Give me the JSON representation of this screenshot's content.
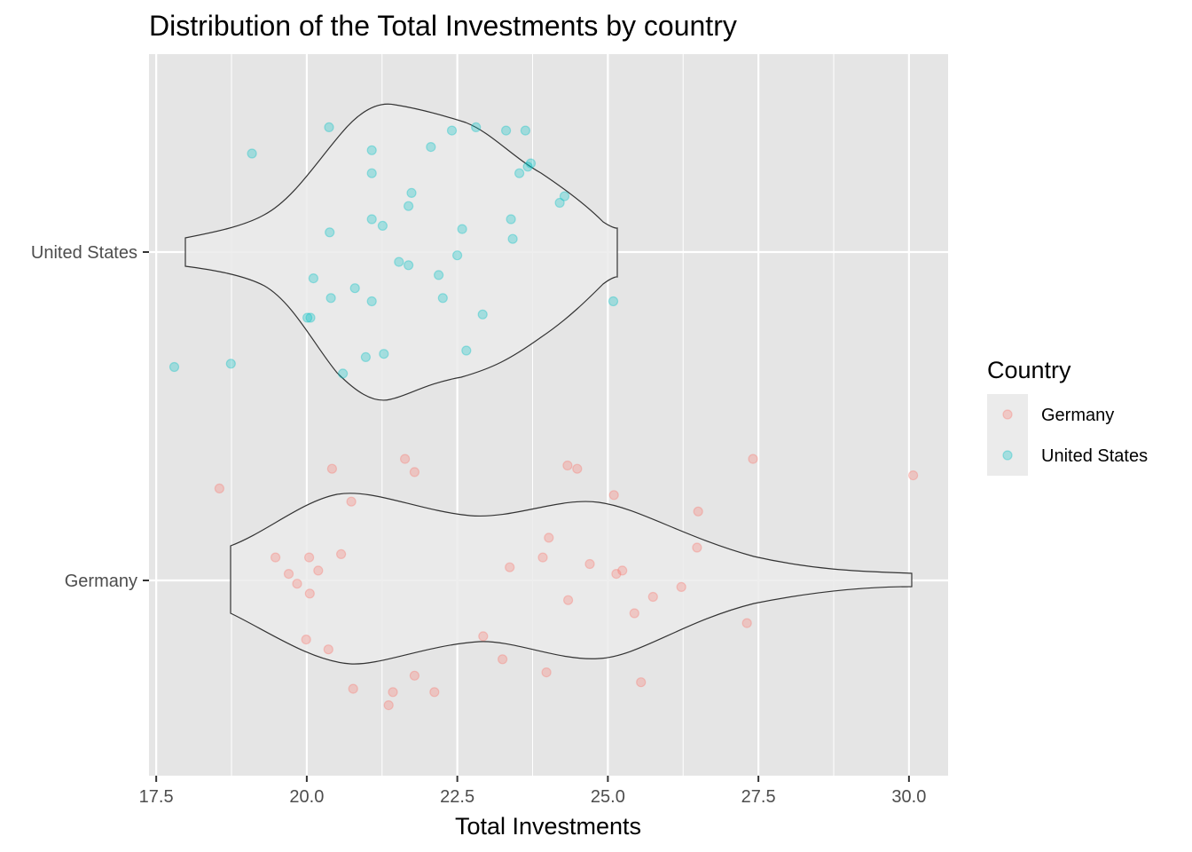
{
  "chart_data": {
    "type": "violin",
    "title": "Distribution of the Total Investments by country",
    "xlabel": "Total Investments",
    "ylabel": "",
    "xlim": [
      17.38,
      30.65
    ],
    "x_ticks": [
      17.5,
      20.0,
      22.5,
      25.0,
      27.5,
      30.0
    ],
    "x_tick_labels": [
      "17.5",
      "20.0",
      "22.5",
      "25.0",
      "27.5",
      "30.0"
    ],
    "categories": [
      "Germany",
      "United States"
    ],
    "grid": true,
    "legend": {
      "title": "Country",
      "position": "right",
      "entries": [
        {
          "label": "Germany",
          "color": "#F8766D"
        },
        {
          "label": "United States",
          "color": "#00BFC4"
        }
      ]
    },
    "series": [
      {
        "name": "Germany",
        "color": "#F8766D",
        "jittered_points": [
          [
            18.55,
            0.28
          ],
          [
            19.48,
            0.07
          ],
          [
            19.7,
            0.02
          ],
          [
            19.84,
            -0.01
          ],
          [
            19.99,
            -0.18
          ],
          [
            20.04,
            0.07
          ],
          [
            20.05,
            -0.04
          ],
          [
            20.19,
            0.03
          ],
          [
            20.36,
            -0.21
          ],
          [
            20.42,
            0.34
          ],
          [
            20.57,
            0.08
          ],
          [
            20.74,
            0.24
          ],
          [
            20.77,
            -0.33
          ],
          [
            21.36,
            -0.38
          ],
          [
            21.43,
            -0.34
          ],
          [
            21.63,
            0.37
          ],
          [
            21.79,
            0.33
          ],
          [
            21.79,
            -0.29
          ],
          [
            22.12,
            -0.34
          ],
          [
            22.93,
            -0.17
          ],
          [
            23.25,
            -0.24
          ],
          [
            23.37,
            0.04
          ],
          [
            23.92,
            0.07
          ],
          [
            23.98,
            -0.28
          ],
          [
            24.02,
            0.13
          ],
          [
            24.33,
            0.35
          ],
          [
            24.34,
            -0.06
          ],
          [
            24.49,
            0.34
          ],
          [
            24.7,
            0.05
          ],
          [
            25.1,
            0.26
          ],
          [
            25.14,
            0.02
          ],
          [
            25.24,
            0.03
          ],
          [
            25.44,
            -0.1
          ],
          [
            25.55,
            -0.31
          ],
          [
            25.75,
            -0.05
          ],
          [
            26.22,
            -0.02
          ],
          [
            26.48,
            0.1
          ],
          [
            26.5,
            0.21
          ],
          [
            27.31,
            -0.13
          ],
          [
            27.41,
            0.37
          ],
          [
            30.07,
            0.32
          ]
        ]
      },
      {
        "name": "United States",
        "color": "#00BFC4",
        "jittered_points": [
          [
            17.8,
            -0.35
          ],
          [
            18.74,
            -0.34
          ],
          [
            19.09,
            0.3
          ],
          [
            20.01,
            -0.2
          ],
          [
            20.06,
            -0.2
          ],
          [
            20.11,
            -0.08
          ],
          [
            20.37,
            0.38
          ],
          [
            20.38,
            0.06
          ],
          [
            20.4,
            -0.14
          ],
          [
            20.6,
            -0.37
          ],
          [
            20.8,
            -0.11
          ],
          [
            20.98,
            -0.32
          ],
          [
            21.08,
            0.31
          ],
          [
            21.08,
            0.24
          ],
          [
            21.08,
            0.1
          ],
          [
            21.08,
            -0.15
          ],
          [
            21.26,
            0.08
          ],
          [
            21.28,
            -0.31
          ],
          [
            21.53,
            -0.03
          ],
          [
            21.69,
            -0.04
          ],
          [
            21.69,
            0.14
          ],
          [
            21.74,
            0.18
          ],
          [
            22.06,
            0.32
          ],
          [
            22.19,
            -0.07
          ],
          [
            22.26,
            -0.14
          ],
          [
            22.41,
            0.37
          ],
          [
            22.5,
            -0.01
          ],
          [
            22.58,
            0.07
          ],
          [
            22.65,
            -0.3
          ],
          [
            22.81,
            0.38
          ],
          [
            22.92,
            -0.19
          ],
          [
            23.31,
            0.37
          ],
          [
            23.39,
            0.1
          ],
          [
            23.42,
            0.04
          ],
          [
            23.53,
            0.24
          ],
          [
            23.63,
            0.37
          ],
          [
            23.67,
            0.26
          ],
          [
            23.72,
            0.27
          ],
          [
            24.2,
            0.15
          ],
          [
            24.28,
            0.17
          ],
          [
            25.09,
            -0.15
          ]
        ]
      }
    ],
    "violin_fill": "#EBEBEB",
    "violin_outline": "#333333",
    "panel_background": "#E5E5E5"
  }
}
